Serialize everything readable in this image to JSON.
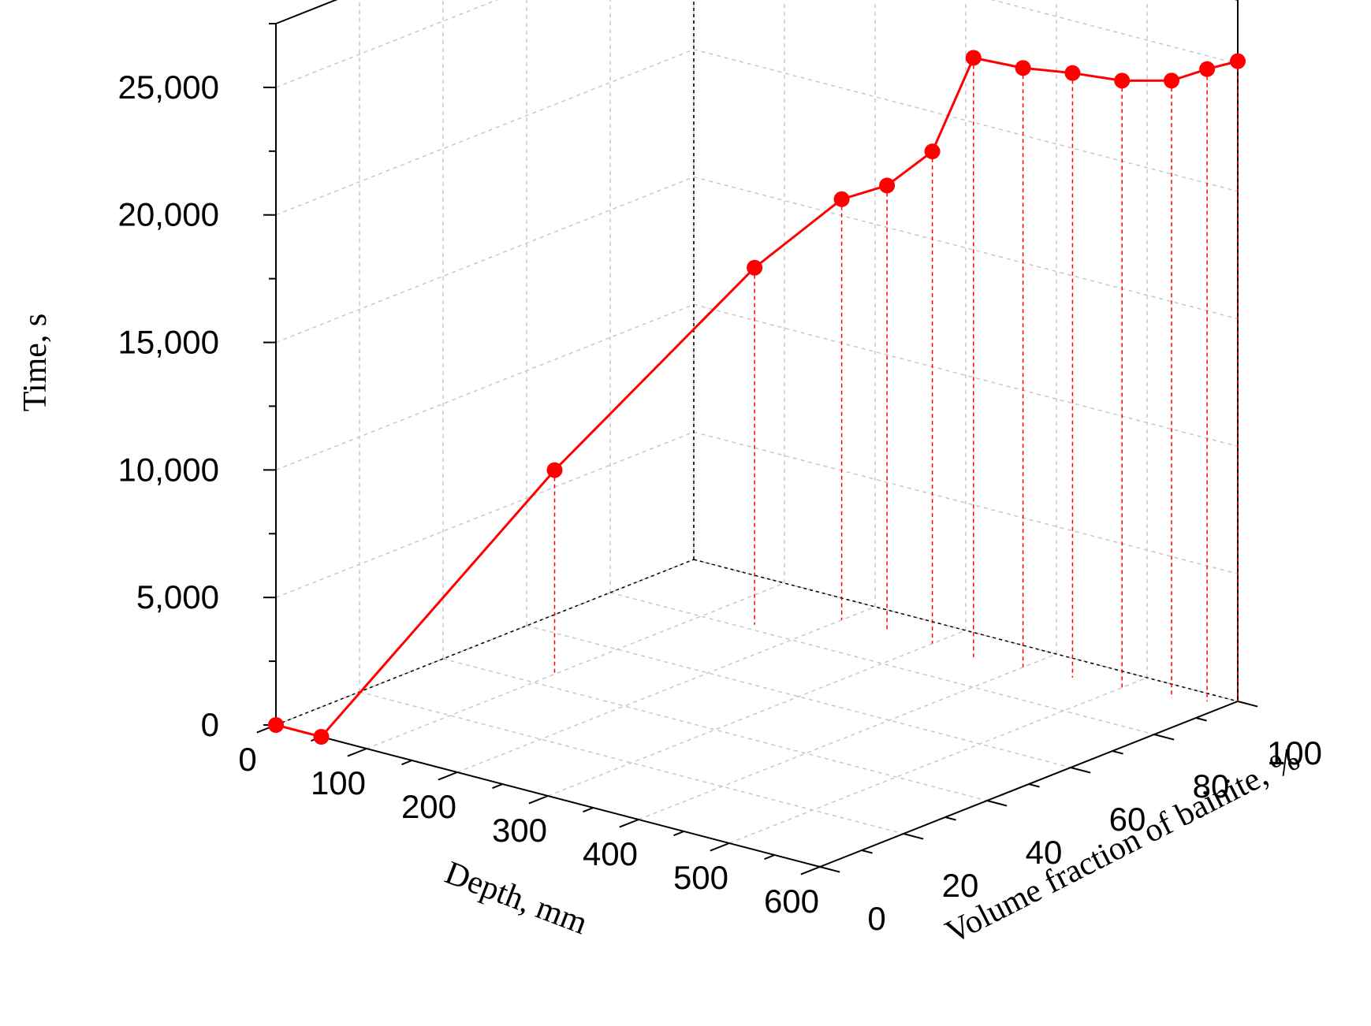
{
  "chart_data": {
    "type": "line",
    "projection": "3d",
    "grid": true,
    "series_color": "#ff0000",
    "axes": {
      "depth": {
        "label": "Depth, mm",
        "range": [
          0,
          600
        ],
        "ticks": [
          "0",
          "100",
          "200",
          "300",
          "400",
          "500",
          "600"
        ]
      },
      "bainite": {
        "label": "Volume fraction of bainite, %",
        "range": [
          0,
          100
        ],
        "ticks": [
          "0",
          "20",
          "40",
          "60",
          "80",
          "100"
        ]
      },
      "time": {
        "label": "Time, s",
        "range": [
          0,
          27500
        ],
        "ticks": [
          "0",
          "5,000",
          "10,000",
          "15,000",
          "20,000",
          "25,000"
        ]
      }
    },
    "points": [
      {
        "depth": 0,
        "bainite": 0,
        "time": 0
      },
      {
        "depth": 50,
        "bainite": 0,
        "time": 0
      },
      {
        "depth": 100,
        "bainite": 45,
        "time": 8000
      },
      {
        "depth": 150,
        "bainite": 82,
        "time": 14000
      },
      {
        "depth": 200,
        "bainite": 92,
        "time": 16500
      },
      {
        "depth": 250,
        "bainite": 92,
        "time": 17500
      },
      {
        "depth": 300,
        "bainite": 92,
        "time": 19300
      },
      {
        "depth": 350,
        "bainite": 91,
        "time": 23500
      },
      {
        "depth": 400,
        "bainite": 92,
        "time": 23500
      },
      {
        "depth": 450,
        "bainite": 93,
        "time": 23700
      },
      {
        "depth": 500,
        "bainite": 94,
        "time": 23800
      },
      {
        "depth": 550,
        "bainite": 95,
        "time": 24200
      },
      {
        "depth": 580,
        "bainite": 97,
        "time": 24800
      },
      {
        "depth": 600,
        "bainite": 100,
        "time": 25100
      }
    ]
  }
}
